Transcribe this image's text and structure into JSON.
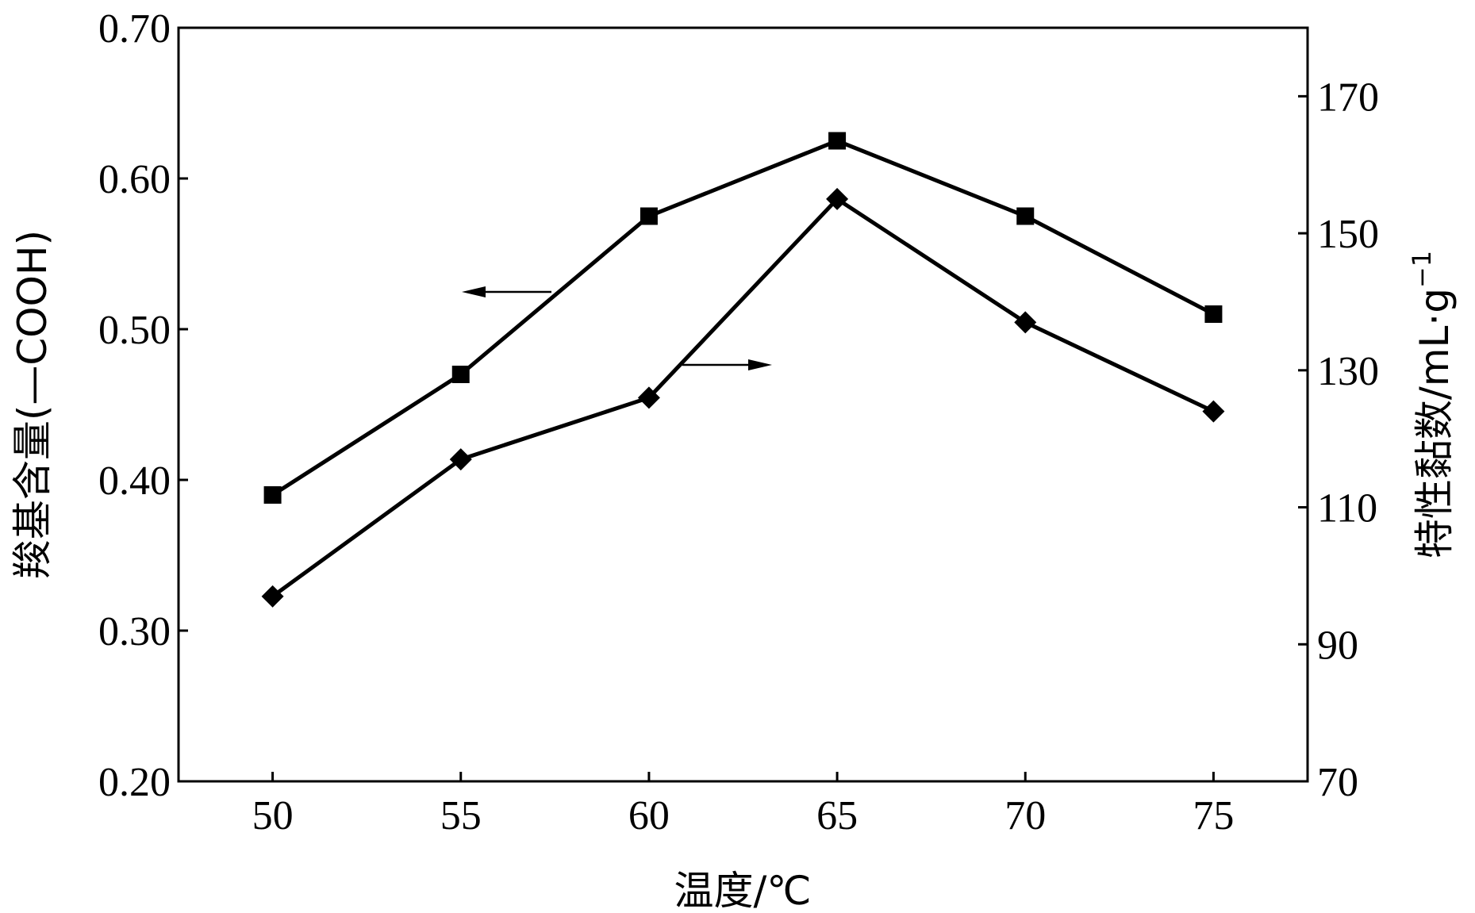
{
  "chart_data": {
    "type": "line",
    "x": [
      50,
      55,
      60,
      65,
      70,
      75
    ],
    "xlabel": "温度/℃",
    "xlim": [
      47.5,
      77.5
    ],
    "x_ticks": [
      "50",
      "55",
      "60",
      "65",
      "70",
      "75"
    ],
    "ylabel_left": "羧基含量(—COOH)",
    "ylim_left": [
      0.2,
      0.7
    ],
    "y_ticks_left": [
      "0.20",
      "0.30",
      "0.40",
      "0.50",
      "0.60",
      "0.70"
    ],
    "ylabel_right": "特性黏数/mL·g",
    "ylabel_right_sup": "−1",
    "ylim_right": [
      70,
      180
    ],
    "y_ticks_right": [
      "70",
      "90",
      "110",
      "130",
      "150",
      "170"
    ],
    "grid": false,
    "series": [
      {
        "marker": "square",
        "axis": "left",
        "values": [
          0.39,
          0.47,
          0.575,
          0.625,
          0.575,
          0.51
        ]
      },
      {
        "marker": "diamond",
        "axis": "right",
        "values": [
          97,
          117,
          126,
          155,
          137,
          124
        ]
      }
    ]
  }
}
